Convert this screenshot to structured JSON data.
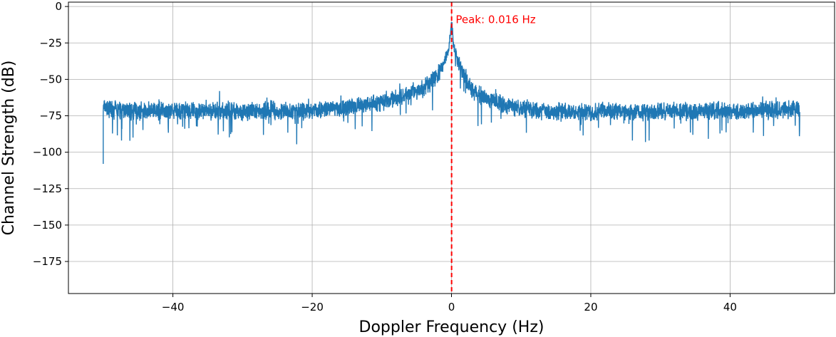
{
  "chart_data": {
    "type": "line",
    "xlabel": "Doppler Frequency (Hz)",
    "ylabel": "Channel Strength (dB)",
    "xlim": [
      -55,
      55
    ],
    "ylim": [
      -197,
      3
    ],
    "xticks": [
      -40,
      -20,
      0,
      20,
      40
    ],
    "xtick_labels": [
      "−40",
      "−20",
      "0",
      "20",
      "40"
    ],
    "yticks": [
      0,
      -25,
      -50,
      -75,
      -100,
      -125,
      -150,
      -175
    ],
    "ytick_labels": [
      "0",
      "−25",
      "−50",
      "−75",
      "−100",
      "−125",
      "−150",
      "−175"
    ],
    "grid": true,
    "series": [
      {
        "color": "#1f77b4",
        "x": [
          -50,
          -48,
          -46,
          -44,
          -42,
          -40,
          -38,
          -36,
          -34,
          -32,
          -30,
          -28,
          -26,
          -24,
          -22,
          -20,
          -18,
          -16,
          -14,
          -12,
          -10,
          -8,
          -6,
          -4,
          -3,
          -2,
          -1.5,
          -1,
          -0.5,
          -0.2,
          0,
          0.2,
          0.5,
          1,
          1.5,
          2,
          3,
          4,
          6,
          8,
          10,
          12,
          14,
          16,
          18,
          20,
          22,
          24,
          26,
          28,
          30,
          32,
          34,
          36,
          38,
          40,
          42,
          44,
          46,
          48,
          50
        ],
        "y": [
          -70,
          -71,
          -72,
          -71,
          -72,
          -72,
          -71,
          -72,
          -72,
          -71,
          -72,
          -72,
          -71,
          -72,
          -72,
          -71,
          -71,
          -70,
          -69,
          -67,
          -65,
          -63,
          -60,
          -56,
          -52,
          -47,
          -43,
          -38,
          -30,
          -22,
          -10,
          -22,
          -30,
          -38,
          -44,
          -50,
          -57,
          -61,
          -65,
          -68,
          -70,
          -71,
          -72,
          -72,
          -72,
          -72,
          -72,
          -72,
          -72,
          -72,
          -72,
          -72,
          -72,
          -72,
          -71,
          -72,
          -72,
          -72,
          -71,
          -71,
          -70
        ]
      }
    ],
    "annotations": [
      {
        "type": "vline",
        "x": 0.016,
        "color": "#ff0000",
        "style": "dashed"
      },
      {
        "type": "text",
        "text": "Peak: 0.016 Hz",
        "x": 0.5,
        "y": -3,
        "color": "#ff0000"
      }
    ]
  }
}
